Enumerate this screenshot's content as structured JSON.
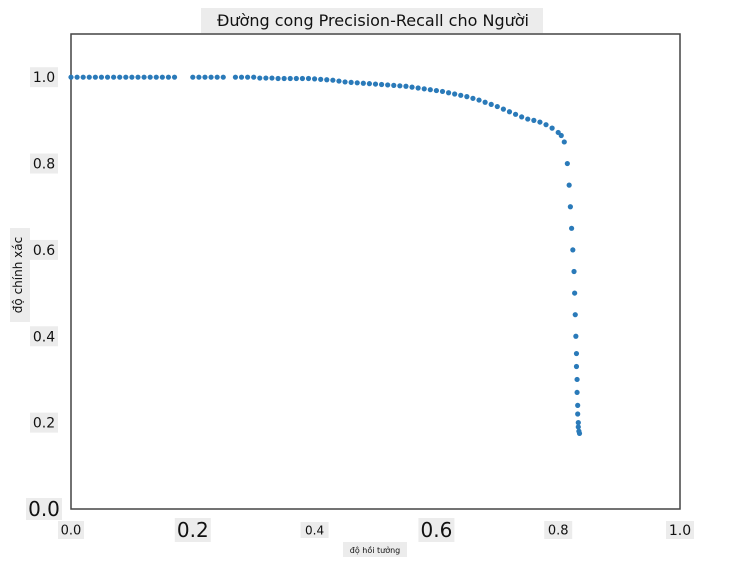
{
  "chart_data": {
    "type": "scatter",
    "title": "Đường cong Precision-Recall cho Người",
    "xlabel": "độ hồi tưởng",
    "ylabel": "độ chính xác",
    "xlim": [
      0.0,
      1.0
    ],
    "ylim": [
      0.0,
      1.1
    ],
    "xticks": [
      "0.0",
      "0.2",
      "0.4",
      "0.6",
      "0.8",
      "1.0"
    ],
    "yticks": [
      "0.0",
      "0.2",
      "0.4",
      "0.6",
      "0.8",
      "1.0"
    ],
    "grid": false,
    "marker_color": "#2a7ab9",
    "series": [
      {
        "x": [
          0.0,
          0.01,
          0.02,
          0.03,
          0.04,
          0.05,
          0.06,
          0.07,
          0.08,
          0.09,
          0.1,
          0.11,
          0.12,
          0.13,
          0.14,
          0.15,
          0.16,
          0.17,
          0.2,
          0.21,
          0.22,
          0.23,
          0.24,
          0.25,
          0.27,
          0.28,
          0.29,
          0.3,
          0.31,
          0.32,
          0.33,
          0.34,
          0.35,
          0.36,
          0.37,
          0.38,
          0.39,
          0.4,
          0.41,
          0.42,
          0.43,
          0.44,
          0.45,
          0.46,
          0.47,
          0.48,
          0.49,
          0.5,
          0.51,
          0.52,
          0.53,
          0.54,
          0.55,
          0.56,
          0.57,
          0.58,
          0.59,
          0.6,
          0.61,
          0.62,
          0.63,
          0.64,
          0.65,
          0.66,
          0.67,
          0.68,
          0.69,
          0.7,
          0.71,
          0.72,
          0.73,
          0.74,
          0.75,
          0.76,
          0.77,
          0.78,
          0.79,
          0.8,
          0.805,
          0.81,
          0.815,
          0.818,
          0.82,
          0.822,
          0.824,
          0.826,
          0.827,
          0.828,
          0.829,
          0.83,
          0.83,
          0.831,
          0.831,
          0.832,
          0.832,
          0.833,
          0.833,
          0.834,
          0.835
        ],
        "y": [
          1.0,
          1.0,
          1.0,
          1.0,
          1.0,
          1.0,
          1.0,
          1.0,
          1.0,
          1.0,
          1.0,
          1.0,
          1.0,
          1.0,
          1.0,
          1.0,
          1.0,
          1.0,
          1.0,
          1.0,
          1.0,
          1.0,
          1.0,
          1.0,
          1.0,
          1.0,
          1.0,
          1.0,
          0.998,
          0.998,
          0.998,
          0.997,
          0.997,
          0.997,
          0.997,
          0.997,
          0.997,
          0.996,
          0.995,
          0.994,
          0.993,
          0.991,
          0.989,
          0.988,
          0.987,
          0.986,
          0.985,
          0.984,
          0.983,
          0.982,
          0.981,
          0.98,
          0.979,
          0.977,
          0.975,
          0.973,
          0.971,
          0.969,
          0.967,
          0.964,
          0.961,
          0.958,
          0.955,
          0.951,
          0.947,
          0.942,
          0.937,
          0.932,
          0.926,
          0.92,
          0.914,
          0.908,
          0.903,
          0.9,
          0.896,
          0.89,
          0.882,
          0.872,
          0.865,
          0.85,
          0.8,
          0.75,
          0.7,
          0.65,
          0.6,
          0.55,
          0.5,
          0.45,
          0.4,
          0.36,
          0.33,
          0.3,
          0.27,
          0.24,
          0.22,
          0.2,
          0.19,
          0.18,
          0.175
        ]
      }
    ]
  }
}
